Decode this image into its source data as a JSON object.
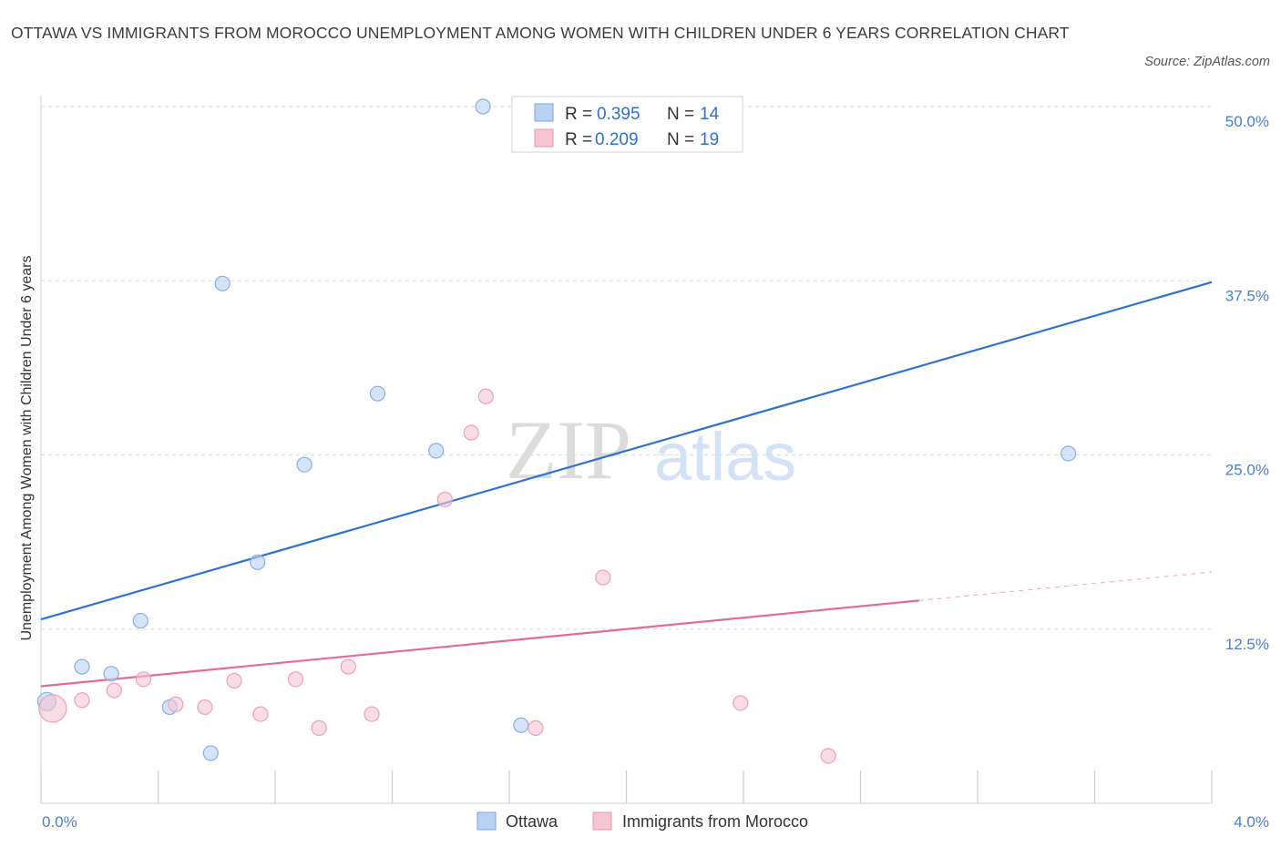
{
  "title": "OTTAWA VS IMMIGRANTS FROM MOROCCO UNEMPLOYMENT AMONG WOMEN WITH CHILDREN UNDER 6 YEARS CORRELATION CHART",
  "source": "Source: ZipAtlas.com",
  "watermark": {
    "zip": "ZIP",
    "atlas": "atlas"
  },
  "colors": {
    "ottawa": "#2f72d0",
    "ottawa_fill": "#b9d2f4",
    "morocco": "#e36b97",
    "morocco_fill": "#f7c4d4",
    "tick": "#4a7fd0",
    "grid": "#d8d8d8"
  },
  "chart_data": {
    "type": "scatter",
    "title": "OTTAWA VS IMMIGRANTS FROM MOROCCO UNEMPLOYMENT AMONG WOMEN WITH CHILDREN UNDER 6 YEARS CORRELATION CHART",
    "xlabel": "",
    "ylabel": "Unemployment Among Women with Children Under 6 years",
    "xlim": [
      0,
      4.0
    ],
    "ylim": [
      0,
      50
    ],
    "x_tick_labels": [
      "0.0%",
      "4.0%"
    ],
    "y_ticks": [
      12.5,
      25.0,
      37.5,
      50.0
    ],
    "y_tick_labels": [
      "12.5%",
      "25.0%",
      "37.5%",
      "50.0%"
    ],
    "grid": true,
    "legend": {
      "position": "top-center",
      "entries": [
        {
          "r_label": "R =",
          "r_value": "0.395",
          "n_label": "N =",
          "n_value": "14"
        },
        {
          "r_label": "R =",
          "r_value": "0.209",
          "n_label": "N =",
          "n_value": "19"
        }
      ]
    },
    "series": [
      {
        "name": "Ottawa",
        "points": [
          {
            "x": 0.02,
            "y": 7.3,
            "size": "medium"
          },
          {
            "x": 0.14,
            "y": 9.8
          },
          {
            "x": 0.24,
            "y": 9.3
          },
          {
            "x": 0.34,
            "y": 13.1
          },
          {
            "x": 0.44,
            "y": 6.9
          },
          {
            "x": 0.58,
            "y": 3.6
          },
          {
            "x": 0.62,
            "y": 37.3
          },
          {
            "x": 0.74,
            "y": 17.3
          },
          {
            "x": 0.9,
            "y": 24.3
          },
          {
            "x": 1.15,
            "y": 29.4
          },
          {
            "x": 1.35,
            "y": 25.3
          },
          {
            "x": 1.51,
            "y": 50.0
          },
          {
            "x": 1.64,
            "y": 5.6
          },
          {
            "x": 3.51,
            "y": 25.1
          }
        ],
        "trend": {
          "x0": 0.0,
          "y0": 13.2,
          "x1": 4.0,
          "y1": 37.4,
          "solid_to_x": 4.0
        }
      },
      {
        "name": "Immigrants from Morocco",
        "points": [
          {
            "x": 0.04,
            "y": 6.8,
            "size": "large"
          },
          {
            "x": 0.14,
            "y": 7.4
          },
          {
            "x": 0.25,
            "y": 8.1
          },
          {
            "x": 0.35,
            "y": 8.9
          },
          {
            "x": 0.46,
            "y": 7.1
          },
          {
            "x": 0.56,
            "y": 6.9
          },
          {
            "x": 0.66,
            "y": 8.8
          },
          {
            "x": 0.75,
            "y": 6.4
          },
          {
            "x": 0.87,
            "y": 8.9
          },
          {
            "x": 0.95,
            "y": 5.4
          },
          {
            "x": 1.05,
            "y": 9.8
          },
          {
            "x": 1.13,
            "y": 6.4
          },
          {
            "x": 1.38,
            "y": 21.8
          },
          {
            "x": 1.47,
            "y": 26.6
          },
          {
            "x": 1.52,
            "y": 29.2
          },
          {
            "x": 1.69,
            "y": 5.4
          },
          {
            "x": 1.92,
            "y": 16.2
          },
          {
            "x": 2.39,
            "y": 7.2
          },
          {
            "x": 2.69,
            "y": 3.4
          }
        ],
        "trend": {
          "x0": 0.0,
          "y0": 8.4,
          "x1": 4.0,
          "y1": 16.6,
          "solid_to_x": 3.0
        }
      }
    ]
  }
}
